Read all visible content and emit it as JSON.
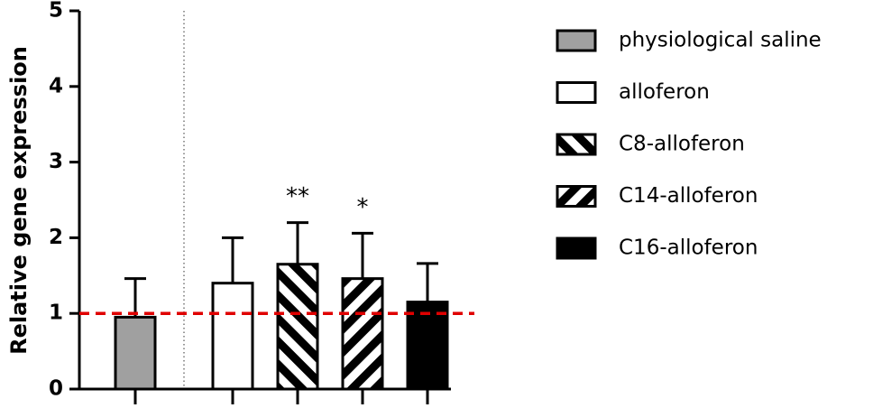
{
  "chart_data": {
    "type": "bar",
    "ylabel": "Relative gene expression",
    "ylim": [
      0,
      5
    ],
    "yticks": [
      0,
      1,
      2,
      3,
      4,
      5
    ],
    "series": [
      {
        "name": "physiological saline",
        "color": "#a0a0a0",
        "pattern": "solid",
        "values": [
          0.95
        ],
        "errors": [
          0.51
        ]
      },
      {
        "name": "alloferon",
        "color": "#ffffff",
        "pattern": "solid",
        "values": [
          1.4
        ],
        "errors": [
          0.6
        ]
      },
      {
        "name": "C8-alloferon",
        "color": "#ffffff",
        "pattern": "hatch-down",
        "values": [
          1.65
        ],
        "errors": [
          0.55
        ]
      },
      {
        "name": "C14-alloferon",
        "color": "#ffffff",
        "pattern": "hatch-up",
        "values": [
          1.46
        ],
        "errors": [
          0.6
        ]
      },
      {
        "name": "C16-alloferon",
        "color": "#000000",
        "pattern": "solid",
        "values": [
          1.15
        ],
        "errors": [
          0.51
        ]
      }
    ],
    "reference_line": {
      "value": 1,
      "color": "#e00000"
    },
    "annotations": [
      {
        "text": "**",
        "series": "C8-alloferon"
      },
      {
        "text": "*",
        "series": "C14-alloferon"
      }
    ]
  }
}
